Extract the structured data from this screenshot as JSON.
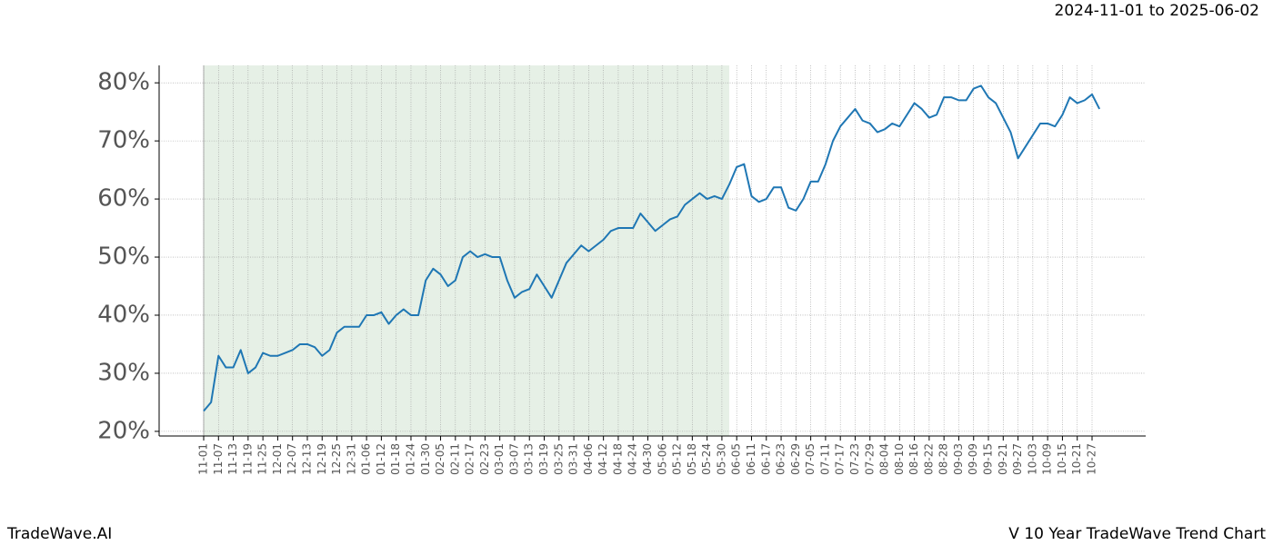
{
  "chart_data": {
    "type": "line",
    "title": "2024-11-01 to 2025-06-02",
    "footer_left": "TradeWave.AI",
    "footer_right": "V 10 Year TradeWave Trend Chart",
    "color": "#1f77b4",
    "shade": {
      "start": "11-01",
      "end": "06-02",
      "color": "#e6f0e6"
    },
    "grid": true,
    "x": [
      "11-01",
      "11-04",
      "11-07",
      "11-10",
      "11-13",
      "11-16",
      "11-19",
      "11-22",
      "11-25",
      "11-28",
      "12-01",
      "12-04",
      "12-07",
      "12-10",
      "12-13",
      "12-16",
      "12-19",
      "12-22",
      "12-25",
      "12-28",
      "12-31",
      "01-03",
      "01-06",
      "01-09",
      "01-12",
      "01-15",
      "01-18",
      "01-21",
      "01-24",
      "01-27",
      "01-30",
      "02-02",
      "02-05",
      "02-08",
      "02-11",
      "02-14",
      "02-17",
      "02-20",
      "02-23",
      "02-26",
      "03-01",
      "03-04",
      "03-07",
      "03-10",
      "03-13",
      "03-16",
      "03-19",
      "03-22",
      "03-25",
      "03-28",
      "03-31",
      "04-03",
      "04-06",
      "04-09",
      "04-12",
      "04-15",
      "04-18",
      "04-21",
      "04-24",
      "04-27",
      "04-30",
      "05-03",
      "05-06",
      "05-09",
      "05-12",
      "05-15",
      "05-18",
      "05-21",
      "05-24",
      "05-27",
      "05-30",
      "06-02",
      "06-05",
      "06-08",
      "06-11",
      "06-14",
      "06-17",
      "06-20",
      "06-23",
      "06-26",
      "06-29",
      "07-02",
      "07-05",
      "07-08",
      "07-11",
      "07-14",
      "07-17",
      "07-20",
      "07-23",
      "07-26",
      "07-29",
      "08-01",
      "08-04",
      "08-07",
      "08-10",
      "08-13",
      "08-16",
      "08-19",
      "08-22",
      "08-25",
      "08-28",
      "08-31",
      "09-03",
      "09-06",
      "09-09",
      "09-12",
      "09-15",
      "09-18",
      "09-21",
      "09-24",
      "09-27",
      "09-30",
      "10-03",
      "10-06",
      "10-09",
      "10-12",
      "10-15",
      "10-18",
      "10-21",
      "10-24",
      "10-27",
      "10-30"
    ],
    "values": [
      23.5,
      25,
      33,
      31,
      31,
      34,
      30,
      31,
      33.5,
      33,
      33,
      33.5,
      34,
      35,
      35,
      34.5,
      33,
      34,
      37,
      38,
      38,
      38,
      40,
      40,
      40.5,
      38.5,
      40,
      41,
      40,
      40,
      46,
      48,
      47,
      45,
      46,
      50,
      51,
      50,
      50.5,
      50,
      50,
      46,
      43,
      44,
      44.5,
      47,
      45,
      43,
      46,
      49,
      50.5,
      52,
      51,
      52,
      53,
      54.5,
      55,
      55,
      55,
      57.5,
      56,
      54.5,
      55.5,
      56.5,
      57,
      59,
      60,
      61,
      60,
      60.5,
      60,
      62.5,
      65.5,
      66,
      60.5,
      59.5,
      60,
      62,
      62,
      58.5,
      58,
      60,
      63,
      63,
      66,
      70,
      72.5,
      74,
      75.5,
      73.5,
      73,
      71.5,
      72,
      73,
      72.5,
      74.5,
      76.5,
      75.5,
      74,
      74.5,
      77.5,
      77.5,
      77,
      77,
      79,
      79.5,
      77.5,
      76.5,
      74,
      71.5,
      67,
      69,
      71,
      73,
      73,
      72.5,
      74.5,
      77.5,
      76.5,
      77,
      78,
      75.5
    ],
    "xticks": [
      "11-01",
      "11-07",
      "11-13",
      "11-19",
      "11-25",
      "12-01",
      "12-07",
      "12-13",
      "12-19",
      "12-25",
      "12-31",
      "01-06",
      "01-12",
      "01-18",
      "01-24",
      "01-30",
      "02-05",
      "02-11",
      "02-17",
      "02-23",
      "03-01",
      "03-07",
      "03-13",
      "03-19",
      "03-25",
      "03-31",
      "04-06",
      "04-12",
      "04-18",
      "04-24",
      "04-30",
      "05-06",
      "05-12",
      "05-18",
      "05-24",
      "05-30",
      "06-05",
      "06-11",
      "06-17",
      "06-23",
      "06-29",
      "07-05",
      "07-11",
      "07-17",
      "07-23",
      "07-29",
      "08-04",
      "08-10",
      "08-16",
      "08-22",
      "08-28",
      "09-03",
      "09-09",
      "09-15",
      "09-21",
      "09-27",
      "10-03",
      "10-09",
      "10-15",
      "10-21",
      "10-27"
    ],
    "ylim": [
      19.2,
      83
    ],
    "yticks": [
      {
        "value": 20,
        "label": "20%"
      },
      {
        "value": 30,
        "label": "30%"
      },
      {
        "value": 40,
        "label": "40%"
      },
      {
        "value": 50,
        "label": "50%"
      },
      {
        "value": 60,
        "label": "60%"
      },
      {
        "value": 70,
        "label": "70%"
      },
      {
        "value": 80,
        "label": "80%"
      }
    ]
  }
}
